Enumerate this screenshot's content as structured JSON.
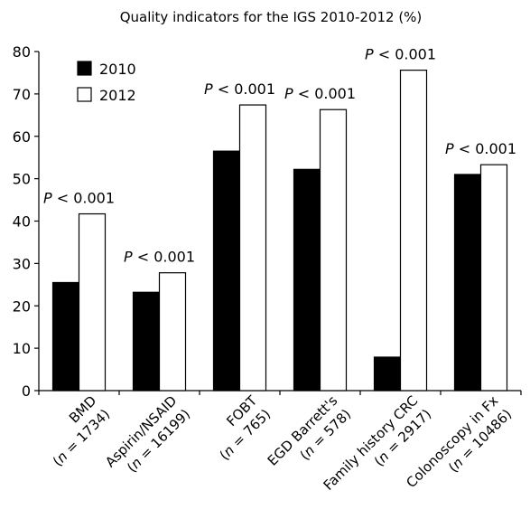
{
  "chart_data": {
    "type": "bar",
    "title": "Quality indicators for the IGS 2010-2012 (%)",
    "xlabel": "",
    "ylabel": "",
    "ylim": [
      0,
      80
    ],
    "yticks": [
      0,
      10,
      20,
      30,
      40,
      50,
      60,
      70,
      80
    ],
    "grid": false,
    "legend_position": "top-left",
    "categories": [
      {
        "name": "BMD",
        "n_label": "(n = 1734)"
      },
      {
        "name": "Aspirin/NSAID",
        "n_label": "(n = 16199)"
      },
      {
        "name": "FOBT",
        "n_label": "(n = 765)"
      },
      {
        "name": "EGD Barrett's",
        "n_label": "(n = 578)"
      },
      {
        "name": "Family history CRC",
        "n_label": "(n = 2917)"
      },
      {
        "name": "Colonoscopy in Fx",
        "n_label": "(n = 10486)"
      }
    ],
    "series": [
      {
        "name": "2010",
        "color": "#000000",
        "values": [
          25.5,
          23.2,
          56.5,
          52.2,
          7.9,
          51.0
        ]
      },
      {
        "name": "2012",
        "color": "#ffffff",
        "values": [
          41.7,
          27.8,
          67.4,
          66.3,
          75.6,
          53.3
        ]
      }
    ],
    "annotations": [
      "P < 0.001",
      "P < 0.001",
      "P < 0.001",
      "P < 0.001",
      "P < 0.001",
      "P < 0.001"
    ]
  }
}
